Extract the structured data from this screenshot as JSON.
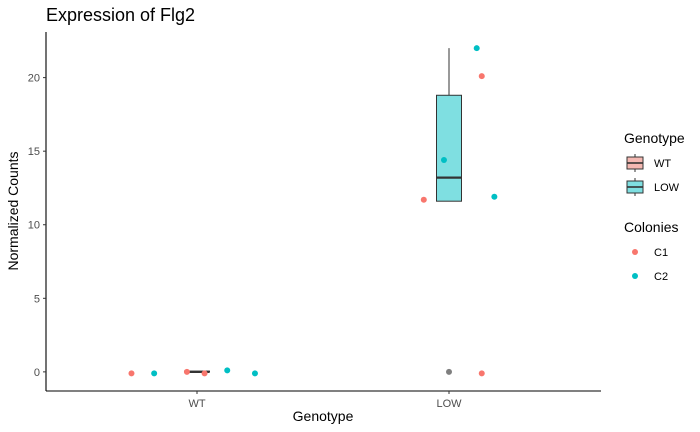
{
  "chart_data": {
    "type": "box",
    "title": "Expression of Flg2",
    "xlabel": "Genotype",
    "ylabel": "Normalized Counts",
    "categories": [
      "WT",
      "LOW"
    ],
    "ylim": [
      -1.3,
      23.1
    ],
    "yticks": [
      0,
      5,
      10,
      15,
      20
    ],
    "grid": false,
    "boxes": [
      {
        "category": "WT",
        "genotype": "WT",
        "fill": "#F4B8B2",
        "q1": 0,
        "median": 0,
        "q3": 0.05,
        "whisker_low": 0,
        "whisker_high": 0.05
      },
      {
        "category": "LOW",
        "genotype": "LOW",
        "fill": "#7FDFE1",
        "q1": 11.6,
        "median": 13.2,
        "q3": 18.8,
        "whisker_low": 11.6,
        "whisker_high": 22.0
      }
    ],
    "outliers": [
      {
        "category": "LOW",
        "value": 0.0,
        "color": "#7F7F7F"
      }
    ],
    "points": [
      {
        "category": "WT",
        "offset": -0.26,
        "value": -0.1,
        "colony": "C1"
      },
      {
        "category": "WT",
        "offset": -0.17,
        "value": -0.1,
        "colony": "C2"
      },
      {
        "category": "WT",
        "offset": -0.04,
        "value": 0.0,
        "colony": "C1"
      },
      {
        "category": "WT",
        "offset": 0.03,
        "value": -0.1,
        "colony": "C1"
      },
      {
        "category": "WT",
        "offset": 0.12,
        "value": 0.1,
        "colony": "C2"
      },
      {
        "category": "WT",
        "offset": 0.23,
        "value": -0.1,
        "colony": "C2"
      },
      {
        "category": "LOW",
        "offset": -0.1,
        "value": 11.7,
        "colony": "C1"
      },
      {
        "category": "LOW",
        "offset": -0.02,
        "value": 14.4,
        "colony": "C2"
      },
      {
        "category": "LOW",
        "offset": 0.11,
        "value": 22.0,
        "colony": "C2"
      },
      {
        "category": "LOW",
        "offset": 0.13,
        "value": 20.1,
        "colony": "C1"
      },
      {
        "category": "LOW",
        "offset": 0.18,
        "value": 11.9,
        "colony": "C2"
      },
      {
        "category": "LOW",
        "offset": 0.13,
        "value": -0.1,
        "colony": "C1"
      }
    ],
    "legends": [
      {
        "title": "Genotype",
        "kind": "box",
        "entries": [
          {
            "label": "WT",
            "color": "#F4B8B2"
          },
          {
            "label": "LOW",
            "color": "#7FDFE1"
          }
        ]
      },
      {
        "title": "Colonies",
        "kind": "point",
        "entries": [
          {
            "label": "C1",
            "color": "#F8766D"
          },
          {
            "label": "C2",
            "color": "#00BFC4"
          }
        ]
      }
    ],
    "legend_position": "right"
  }
}
